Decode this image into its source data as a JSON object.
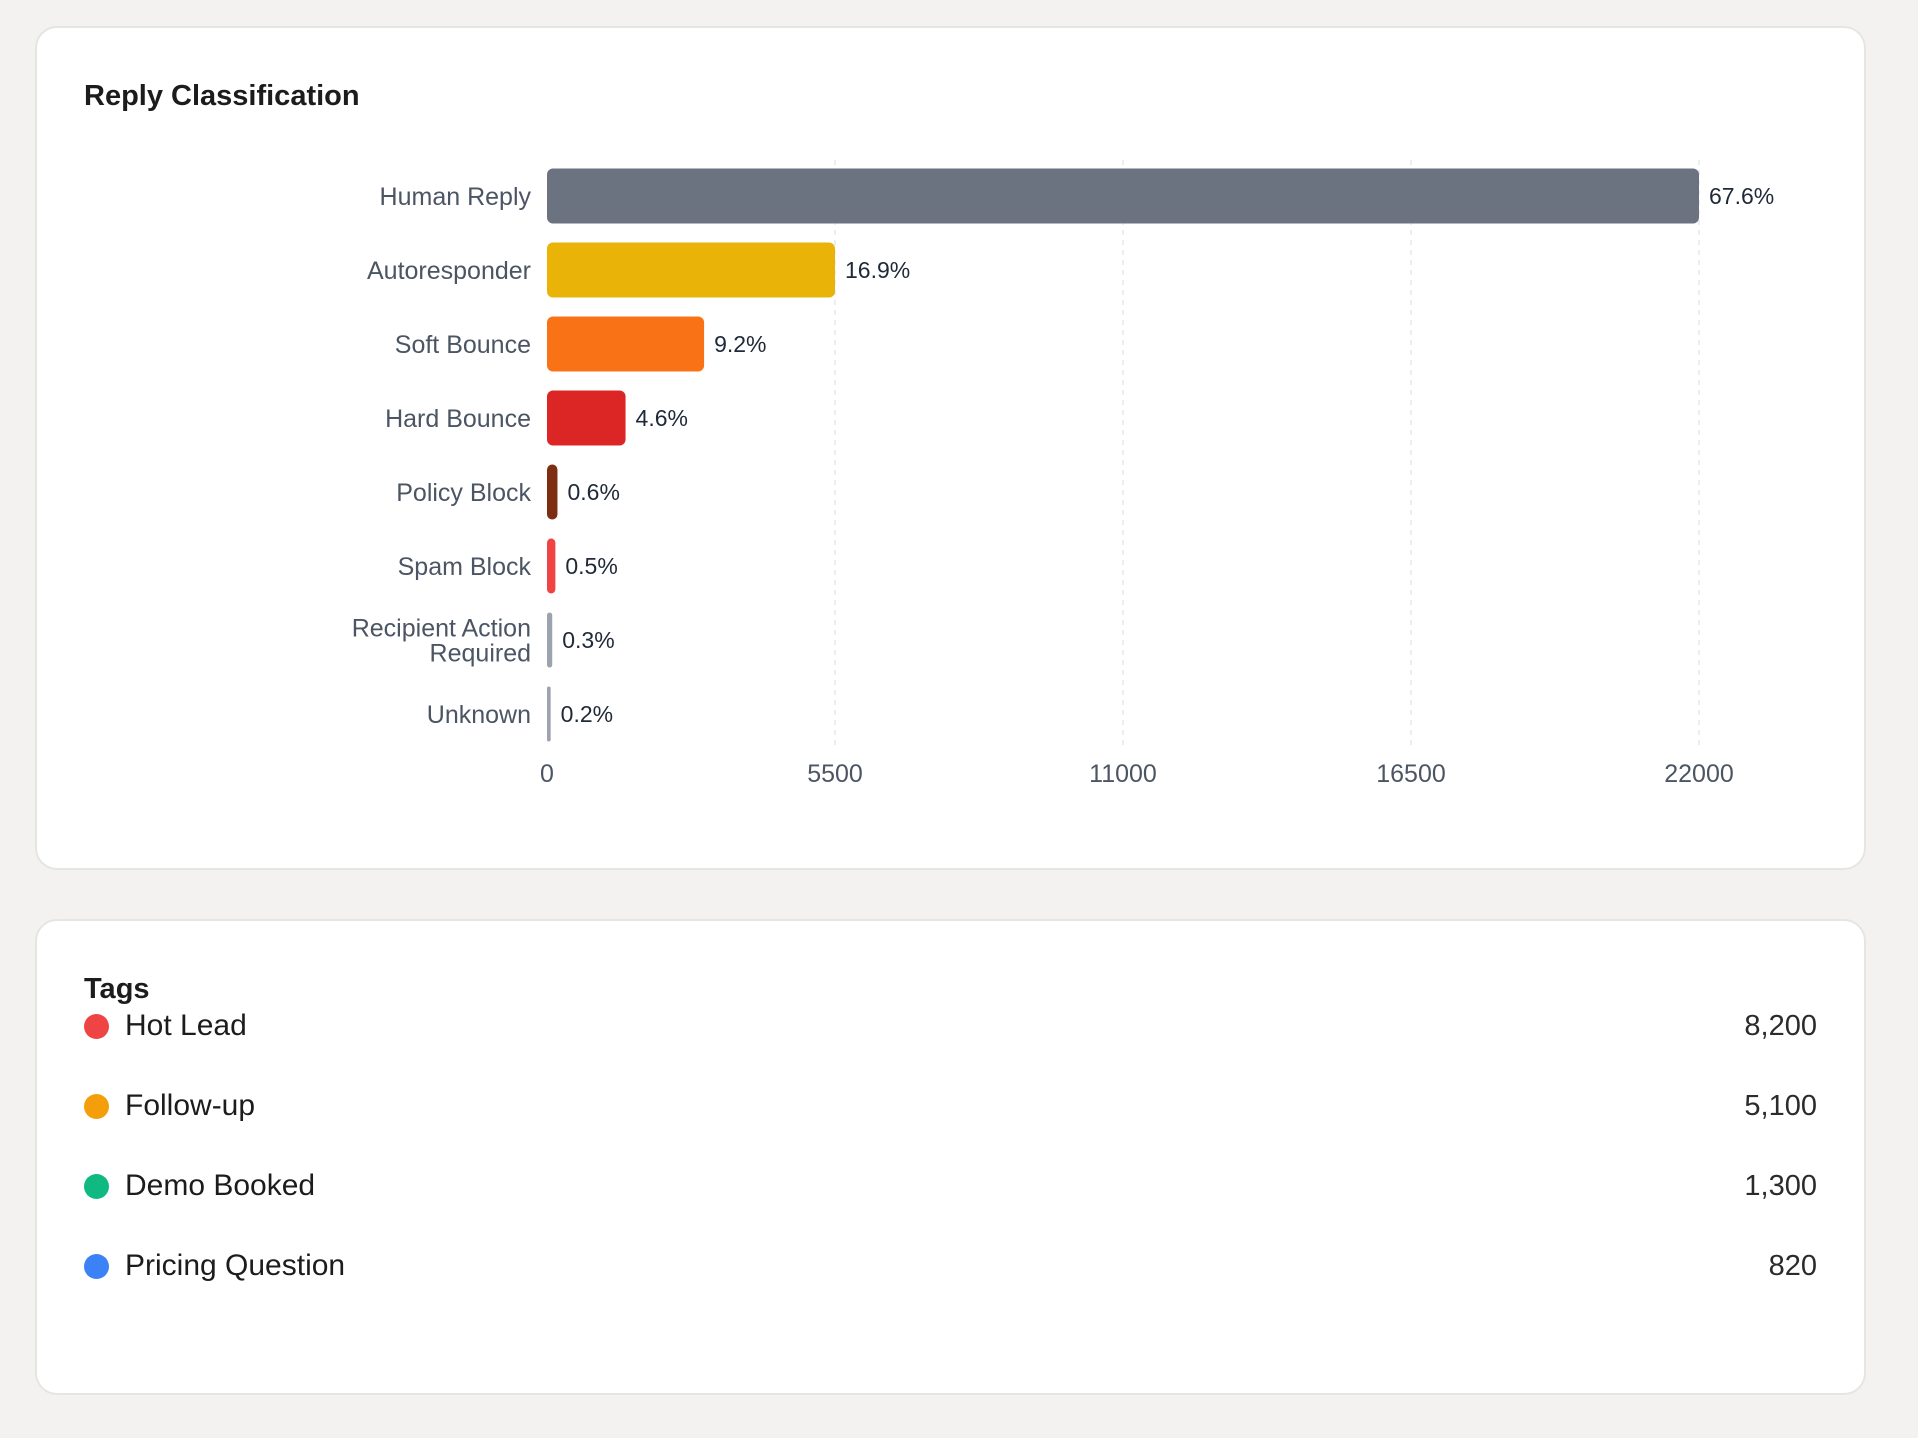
{
  "reply_card": {
    "title": "Reply Classification"
  },
  "tags_card": {
    "title": "Tags",
    "items": [
      {
        "label": "Hot Lead",
        "count": "8,200",
        "color": "#ef4444"
      },
      {
        "label": "Follow-up",
        "count": "5,100",
        "color": "#f59e0b"
      },
      {
        "label": "Demo Booked",
        "count": "1,300",
        "color": "#10b981"
      },
      {
        "label": "Pricing Question",
        "count": "820",
        "color": "#3b82f6"
      }
    ]
  },
  "chart_data": {
    "type": "bar",
    "orientation": "horizontal",
    "title": "Reply Classification",
    "categories": [
      "Human Reply",
      "Autoresponder",
      "Soft Bounce",
      "Hard Bounce",
      "Policy Block",
      "Spam Block",
      "Recipient Action Required",
      "Unknown"
    ],
    "category_lines": [
      [
        "Human Reply"
      ],
      [
        "Autoresponder"
      ],
      [
        "Soft Bounce"
      ],
      [
        "Hard Bounce"
      ],
      [
        "Policy Block"
      ],
      [
        "Spam Block"
      ],
      [
        "Recipient Action",
        "Required"
      ],
      [
        "Unknown"
      ]
    ],
    "values": [
      22000,
      5500,
      3000,
      1500,
      200,
      160,
      100,
      70
    ],
    "labels": [
      "67.6%",
      "16.9%",
      "9.2%",
      "4.6%",
      "0.6%",
      "0.5%",
      "0.3%",
      "0.2%"
    ],
    "colors": [
      "#6b7280",
      "#eab308",
      "#f97316",
      "#dc2626",
      "#7c2d12",
      "#ef4444",
      "#9ca3af",
      "#9ca3af"
    ],
    "xlim": [
      0,
      22000
    ],
    "xticks": [
      "0",
      "5500",
      "11000",
      "16500",
      "22000"
    ],
    "xtick_values": [
      0,
      5500,
      11000,
      16500,
      22000
    ],
    "grid": "vertical-dashed",
    "legend": "none"
  }
}
